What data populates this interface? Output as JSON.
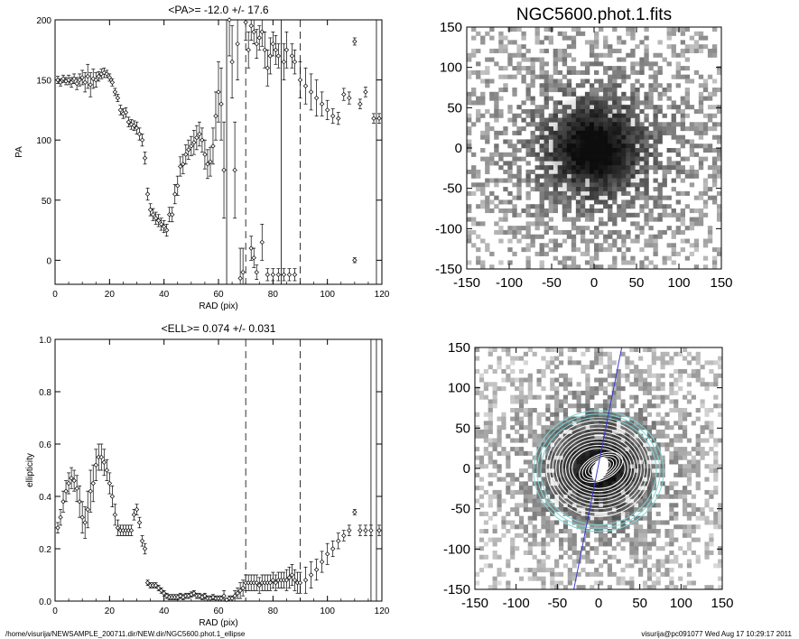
{
  "footer": {
    "left": "/home/visurija/NEWSAMPLE_200711.dir/NEW.dir/NGC5600.phot.1_ellipse",
    "right": "visurija@pc091077  Wed Aug 17 10:29:17 2011"
  },
  "chart_data": [
    {
      "id": "pa",
      "type": "scatter",
      "title": "<PA>= -12.0 +/-  17.6",
      "xlabel": "RAD (pix)",
      "ylabel": "PA",
      "xlim": [
        0,
        120
      ],
      "ylim": [
        -20,
        200
      ],
      "xticks": [
        0,
        20,
        40,
        60,
        80,
        100,
        120
      ],
      "yticks": [
        0,
        50,
        100,
        150,
        200
      ],
      "vlines_dashed": [
        70,
        90
      ],
      "vlines_solid": [
        63,
        83,
        118
      ],
      "points": [
        {
          "x": 1,
          "y": 150,
          "e": 3
        },
        {
          "x": 2,
          "y": 148,
          "e": 3
        },
        {
          "x": 3,
          "y": 151,
          "e": 3
        },
        {
          "x": 4,
          "y": 149,
          "e": 3
        },
        {
          "x": 5,
          "y": 150,
          "e": 4
        },
        {
          "x": 6,
          "y": 148,
          "e": 4
        },
        {
          "x": 7,
          "y": 151,
          "e": 4
        },
        {
          "x": 8,
          "y": 147,
          "e": 5
        },
        {
          "x": 9,
          "y": 150,
          "e": 5
        },
        {
          "x": 10,
          "y": 152,
          "e": 6
        },
        {
          "x": 11,
          "y": 148,
          "e": 8
        },
        {
          "x": 12,
          "y": 153,
          "e": 10
        },
        {
          "x": 13,
          "y": 146,
          "e": 10
        },
        {
          "x": 14,
          "y": 151,
          "e": 8
        },
        {
          "x": 15,
          "y": 150,
          "e": 6
        },
        {
          "x": 16,
          "y": 153,
          "e": 4
        },
        {
          "x": 17,
          "y": 155,
          "e": 4
        },
        {
          "x": 18,
          "y": 156,
          "e": 4
        },
        {
          "x": 19,
          "y": 155,
          "e": 3
        },
        {
          "x": 20,
          "y": 152,
          "e": 3
        },
        {
          "x": 21,
          "y": 148,
          "e": 3
        },
        {
          "x": 22,
          "y": 140,
          "e": 3
        },
        {
          "x": 23,
          "y": 135,
          "e": 3
        },
        {
          "x": 24,
          "y": 125,
          "e": 4
        },
        {
          "x": 25,
          "y": 122,
          "e": 4
        },
        {
          "x": 26,
          "y": 123,
          "e": 4
        },
        {
          "x": 27,
          "y": 115,
          "e": 4
        },
        {
          "x": 28,
          "y": 113,
          "e": 4
        },
        {
          "x": 29,
          "y": 112,
          "e": 4
        },
        {
          "x": 30,
          "y": 110,
          "e": 5
        },
        {
          "x": 31,
          "y": 105,
          "e": 5
        },
        {
          "x": 32,
          "y": 100,
          "e": 5
        },
        {
          "x": 33,
          "y": 85,
          "e": 5
        },
        {
          "x": 34,
          "y": 55,
          "e": 5
        },
        {
          "x": 35,
          "y": 42,
          "e": 5
        },
        {
          "x": 36,
          "y": 38,
          "e": 5
        },
        {
          "x": 37,
          "y": 35,
          "e": 5
        },
        {
          "x": 38,
          "y": 33,
          "e": 5
        },
        {
          "x": 39,
          "y": 30,
          "e": 5
        },
        {
          "x": 40,
          "y": 28,
          "e": 5
        },
        {
          "x": 41,
          "y": 25,
          "e": 5
        },
        {
          "x": 42,
          "y": 38,
          "e": 6
        },
        {
          "x": 43,
          "y": 38,
          "e": 6
        },
        {
          "x": 44,
          "y": 55,
          "e": 8
        },
        {
          "x": 45,
          "y": 62,
          "e": 8
        },
        {
          "x": 46,
          "y": 78,
          "e": 8
        },
        {
          "x": 47,
          "y": 80,
          "e": 8
        },
        {
          "x": 48,
          "y": 88,
          "e": 8
        },
        {
          "x": 49,
          "y": 92,
          "e": 8
        },
        {
          "x": 50,
          "y": 95,
          "e": 8
        },
        {
          "x": 51,
          "y": 98,
          "e": 10
        },
        {
          "x": 52,
          "y": 102,
          "e": 10
        },
        {
          "x": 53,
          "y": 105,
          "e": 10
        },
        {
          "x": 54,
          "y": 100,
          "e": 10
        },
        {
          "x": 55,
          "y": 88,
          "e": 12
        },
        {
          "x": 56,
          "y": 80,
          "e": 12
        },
        {
          "x": 57,
          "y": 82,
          "e": 12
        },
        {
          "x": 58,
          "y": 95,
          "e": 15
        },
        {
          "x": 59,
          "y": 120,
          "e": 20
        },
        {
          "x": 60,
          "y": 140,
          "e": 25
        },
        {
          "x": 61,
          "y": 130,
          "e": 30
        },
        {
          "x": 62,
          "y": 75,
          "e": 40
        },
        {
          "x": 64,
          "y": 200,
          "e": 30
        },
        {
          "x": 65,
          "y": 165,
          "e": 30
        },
        {
          "x": 66,
          "y": 75,
          "e": 40
        },
        {
          "x": 67,
          "y": 180,
          "e": 30
        },
        {
          "x": 68,
          "y": -15,
          "e": 25
        },
        {
          "x": 69,
          "y": -10,
          "e": 20
        },
        {
          "x": 70,
          "y": 198,
          "e": 15
        },
        {
          "x": 71,
          "y": 175,
          "e": 15
        },
        {
          "x": 72,
          "y": 195,
          "e": 12
        },
        {
          "x": 73,
          "y": 190,
          "e": 10
        },
        {
          "x": 74,
          "y": 180,
          "e": 12
        },
        {
          "x": 75,
          "y": 185,
          "e": 10
        },
        {
          "x": 76,
          "y": 190,
          "e": 12
        },
        {
          "x": 77,
          "y": 175,
          "e": 15
        },
        {
          "x": 78,
          "y": 160,
          "e": 15
        },
        {
          "x": 79,
          "y": 170,
          "e": 15
        },
        {
          "x": 80,
          "y": 180,
          "e": 10
        },
        {
          "x": 81,
          "y": 175,
          "e": 12
        },
        {
          "x": 82,
          "y": 170,
          "e": 10
        },
        {
          "x": 84,
          "y": 165,
          "e": 15
        },
        {
          "x": 85,
          "y": 175,
          "e": 15
        },
        {
          "x": 87,
          "y": 170,
          "e": 10
        },
        {
          "x": 88,
          "y": 165,
          "e": 10
        },
        {
          "x": 90,
          "y": 150,
          "e": 15
        },
        {
          "x": 92,
          "y": 145,
          "e": 15
        },
        {
          "x": 94,
          "y": 140,
          "e": 15
        },
        {
          "x": 96,
          "y": 135,
          "e": 15
        },
        {
          "x": 98,
          "y": 130,
          "e": 10
        },
        {
          "x": 100,
          "y": 125,
          "e": 8
        },
        {
          "x": 102,
          "y": 120,
          "e": 6
        },
        {
          "x": 104,
          "y": 118,
          "e": 5
        },
        {
          "x": 106,
          "y": 138,
          "e": 5
        },
        {
          "x": 108,
          "y": 135,
          "e": 5
        },
        {
          "x": 110,
          "y": 182,
          "e": 3
        },
        {
          "x": 110,
          "y": 0,
          "e": 2
        },
        {
          "x": 112,
          "y": 130,
          "e": 4
        },
        {
          "x": 114,
          "y": 140,
          "e": 4
        },
        {
          "x": 117,
          "y": 118,
          "e": 4
        },
        {
          "x": 119,
          "y": 118,
          "e": 4
        },
        {
          "x": 72,
          "y": 10,
          "e": 10
        },
        {
          "x": 73,
          "y": 2,
          "e": 8
        },
        {
          "x": 74,
          "y": -10,
          "e": 6
        },
        {
          "x": 76,
          "y": 15,
          "e": 15
        },
        {
          "x": 78,
          "y": -12,
          "e": 5
        },
        {
          "x": 80,
          "y": -12,
          "e": 5
        },
        {
          "x": 82,
          "y": -12,
          "e": 5
        },
        {
          "x": 84,
          "y": -12,
          "e": 5
        },
        {
          "x": 86,
          "y": -12,
          "e": 5
        },
        {
          "x": 88,
          "y": -12,
          "e": 5
        }
      ]
    },
    {
      "id": "ell",
      "type": "scatter",
      "title": "<ELL>= 0.074 +/-  0.031",
      "xlabel": "RAD (pix)",
      "ylabel": "ellipticity",
      "xlim": [
        0,
        120
      ],
      "ylim": [
        0,
        1
      ],
      "xticks": [
        0,
        20,
        40,
        60,
        80,
        100,
        120
      ],
      "yticks": [
        0.0,
        0.2,
        0.4,
        0.6,
        0.8,
        1.0
      ],
      "yticklabels": [
        "0.0",
        "0.2",
        "0.4",
        "0.6",
        "0.8",
        "1.0"
      ],
      "vlines_dashed": [
        70,
        90
      ],
      "vlines_solid": [
        116,
        118
      ],
      "points": [
        {
          "x": 1,
          "y": 0.28,
          "e": 0.02
        },
        {
          "x": 2,
          "y": 0.32,
          "e": 0.03
        },
        {
          "x": 3,
          "y": 0.38,
          "e": 0.04
        },
        {
          "x": 4,
          "y": 0.42,
          "e": 0.04
        },
        {
          "x": 5,
          "y": 0.45,
          "e": 0.04
        },
        {
          "x": 6,
          "y": 0.47,
          "e": 0.04
        },
        {
          "x": 7,
          "y": 0.46,
          "e": 0.04
        },
        {
          "x": 8,
          "y": 0.43,
          "e": 0.05
        },
        {
          "x": 9,
          "y": 0.38,
          "e": 0.06
        },
        {
          "x": 10,
          "y": 0.32,
          "e": 0.06
        },
        {
          "x": 11,
          "y": 0.3,
          "e": 0.06
        },
        {
          "x": 12,
          "y": 0.35,
          "e": 0.07
        },
        {
          "x": 13,
          "y": 0.42,
          "e": 0.08
        },
        {
          "x": 14,
          "y": 0.45,
          "e": 0.07
        },
        {
          "x": 15,
          "y": 0.52,
          "e": 0.06
        },
        {
          "x": 16,
          "y": 0.55,
          "e": 0.05
        },
        {
          "x": 17,
          "y": 0.55,
          "e": 0.05
        },
        {
          "x": 18,
          "y": 0.53,
          "e": 0.05
        },
        {
          "x": 19,
          "y": 0.5,
          "e": 0.04
        },
        {
          "x": 20,
          "y": 0.45,
          "e": 0.04
        },
        {
          "x": 21,
          "y": 0.4,
          "e": 0.04
        },
        {
          "x": 22,
          "y": 0.33,
          "e": 0.04
        },
        {
          "x": 23,
          "y": 0.28,
          "e": 0.03
        },
        {
          "x": 24,
          "y": 0.27,
          "e": 0.02
        },
        {
          "x": 25,
          "y": 0.27,
          "e": 0.02
        },
        {
          "x": 26,
          "y": 0.27,
          "e": 0.02
        },
        {
          "x": 27,
          "y": 0.27,
          "e": 0.02
        },
        {
          "x": 28,
          "y": 0.27,
          "e": 0.02
        },
        {
          "x": 29,
          "y": 0.33,
          "e": 0.02
        },
        {
          "x": 30,
          "y": 0.35,
          "e": 0.02
        },
        {
          "x": 31,
          "y": 0.3,
          "e": 0.02
        },
        {
          "x": 32,
          "y": 0.23,
          "e": 0.02
        },
        {
          "x": 33,
          "y": 0.2,
          "e": 0.02
        },
        {
          "x": 34,
          "y": 0.07,
          "e": 0.01
        },
        {
          "x": 35,
          "y": 0.06,
          "e": 0.01
        },
        {
          "x": 36,
          "y": 0.06,
          "e": 0.01
        },
        {
          "x": 37,
          "y": 0.06,
          "e": 0.01
        },
        {
          "x": 38,
          "y": 0.05,
          "e": 0.01
        },
        {
          "x": 39,
          "y": 0.04,
          "e": 0.01
        },
        {
          "x": 40,
          "y": 0.03,
          "e": 0.01
        },
        {
          "x": 41,
          "y": 0.02,
          "e": 0.01
        },
        {
          "x": 42,
          "y": 0.015,
          "e": 0.01
        },
        {
          "x": 43,
          "y": 0.015,
          "e": 0.01
        },
        {
          "x": 44,
          "y": 0.015,
          "e": 0.01
        },
        {
          "x": 45,
          "y": 0.015,
          "e": 0.01
        },
        {
          "x": 46,
          "y": 0.02,
          "e": 0.01
        },
        {
          "x": 47,
          "y": 0.015,
          "e": 0.01
        },
        {
          "x": 48,
          "y": 0.02,
          "e": 0.01
        },
        {
          "x": 49,
          "y": 0.02,
          "e": 0.01
        },
        {
          "x": 50,
          "y": 0.025,
          "e": 0.01
        },
        {
          "x": 51,
          "y": 0.03,
          "e": 0.01
        },
        {
          "x": 52,
          "y": 0.02,
          "e": 0.01
        },
        {
          "x": 53,
          "y": 0.02,
          "e": 0.01
        },
        {
          "x": 54,
          "y": 0.015,
          "e": 0.01
        },
        {
          "x": 55,
          "y": 0.02,
          "e": 0.01
        },
        {
          "x": 56,
          "y": 0.01,
          "e": 0.01
        },
        {
          "x": 57,
          "y": 0.01,
          "e": 0.01
        },
        {
          "x": 58,
          "y": 0.015,
          "e": 0.01
        },
        {
          "x": 59,
          "y": 0.01,
          "e": 0.01
        },
        {
          "x": 60,
          "y": 0.01,
          "e": 0.01
        },
        {
          "x": 61,
          "y": 0.01,
          "e": 0.01
        },
        {
          "x": 62,
          "y": 0.02,
          "e": 0.02
        },
        {
          "x": 63,
          "y": 0.005,
          "e": 0.005
        },
        {
          "x": 64,
          "y": 0.01,
          "e": 0.01
        },
        {
          "x": 65,
          "y": 0.01,
          "e": 0.01
        },
        {
          "x": 66,
          "y": 0.02,
          "e": 0.02
        },
        {
          "x": 67,
          "y": 0.03,
          "e": 0.02
        },
        {
          "x": 68,
          "y": 0.04,
          "e": 0.03
        },
        {
          "x": 69,
          "y": 0.05,
          "e": 0.03
        },
        {
          "x": 70,
          "y": 0.07,
          "e": 0.03
        },
        {
          "x": 71,
          "y": 0.07,
          "e": 0.03
        },
        {
          "x": 72,
          "y": 0.07,
          "e": 0.03
        },
        {
          "x": 73,
          "y": 0.07,
          "e": 0.03
        },
        {
          "x": 74,
          "y": 0.07,
          "e": 0.03
        },
        {
          "x": 75,
          "y": 0.06,
          "e": 0.03
        },
        {
          "x": 76,
          "y": 0.07,
          "e": 0.03
        },
        {
          "x": 77,
          "y": 0.07,
          "e": 0.03
        },
        {
          "x": 78,
          "y": 0.07,
          "e": 0.03
        },
        {
          "x": 79,
          "y": 0.07,
          "e": 0.03
        },
        {
          "x": 80,
          "y": 0.08,
          "e": 0.03
        },
        {
          "x": 81,
          "y": 0.07,
          "e": 0.03
        },
        {
          "x": 82,
          "y": 0.08,
          "e": 0.03
        },
        {
          "x": 83,
          "y": 0.08,
          "e": 0.03
        },
        {
          "x": 84,
          "y": 0.08,
          "e": 0.03
        },
        {
          "x": 85,
          "y": 0.08,
          "e": 0.04
        },
        {
          "x": 86,
          "y": 0.09,
          "e": 0.04
        },
        {
          "x": 87,
          "y": 0.1,
          "e": 0.04
        },
        {
          "x": 88,
          "y": 0.08,
          "e": 0.04
        },
        {
          "x": 89,
          "y": 0.07,
          "e": 0.04
        },
        {
          "x": 90,
          "y": 0.07,
          "e": 0.04
        },
        {
          "x": 92,
          "y": 0.08,
          "e": 0.05
        },
        {
          "x": 94,
          "y": 0.1,
          "e": 0.05
        },
        {
          "x": 96,
          "y": 0.12,
          "e": 0.04
        },
        {
          "x": 98,
          "y": 0.15,
          "e": 0.04
        },
        {
          "x": 100,
          "y": 0.18,
          "e": 0.04
        },
        {
          "x": 102,
          "y": 0.2,
          "e": 0.03
        },
        {
          "x": 104,
          "y": 0.23,
          "e": 0.03
        },
        {
          "x": 106,
          "y": 0.25,
          "e": 0.02
        },
        {
          "x": 108,
          "y": 0.27,
          "e": 0.02
        },
        {
          "x": 110,
          "y": 0.34,
          "e": 0.01
        },
        {
          "x": 112,
          "y": 0.27,
          "e": 0.02
        },
        {
          "x": 114,
          "y": 0.27,
          "e": 0.02
        },
        {
          "x": 116,
          "y": 0.27,
          "e": 0.02
        },
        {
          "x": 119,
          "y": 0.27,
          "e": 0.02
        }
      ]
    },
    {
      "id": "img1",
      "type": "heatmap",
      "title": "NGC5600.phot.1.fits",
      "xlim": [
        -150,
        150
      ],
      "ylim": [
        -150,
        150
      ],
      "xticks": [
        -150,
        -100,
        -50,
        0,
        50,
        100,
        150
      ],
      "yticks": [
        -150,
        -100,
        -50,
        0,
        50,
        100,
        150
      ],
      "colormap": "grayscale-inverted",
      "overlay": false
    },
    {
      "id": "img2",
      "type": "heatmap",
      "title": "",
      "xlim": [
        -150,
        150
      ],
      "ylim": [
        -150,
        150
      ],
      "xticks": [
        -150,
        -100,
        -50,
        0,
        50,
        100,
        150
      ],
      "yticks": [
        -150,
        -100,
        -50,
        0,
        50,
        100,
        150
      ],
      "colormap": "grayscale-inverted",
      "overlay": true,
      "isophote_color": "#ffffff",
      "outer_isophote_color": "#7fd6d6",
      "pa_line_color": "#3a3ad6"
    }
  ]
}
